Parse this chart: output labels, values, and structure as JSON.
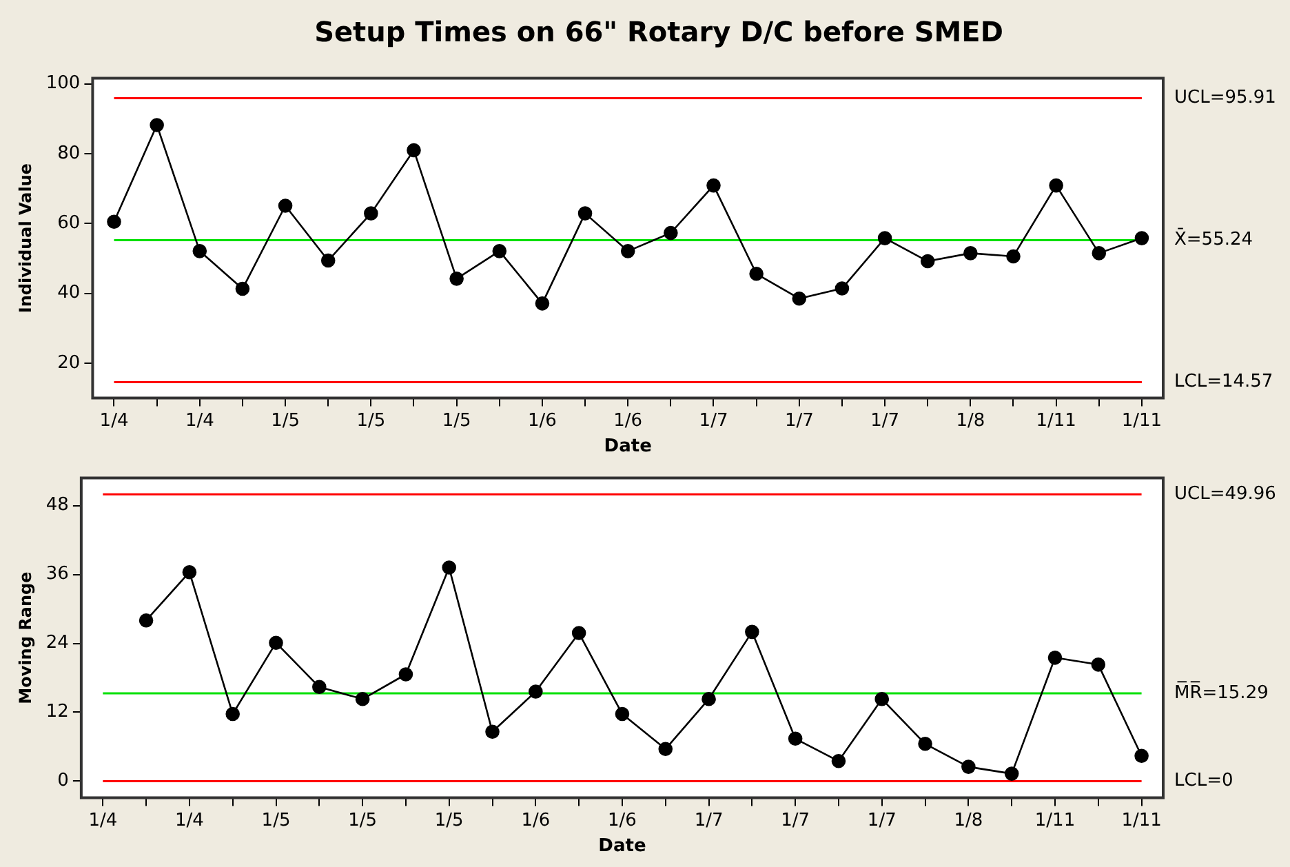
{
  "chart_data": [
    {
      "type": "line",
      "title": "Setup Times on 66\" Rotary D/C before SMED",
      "xlabel": "Date",
      "ylabel": "Individual Value",
      "categories": [
        "1/4",
        null,
        "1/4",
        null,
        "1/5",
        null,
        "1/5",
        null,
        "1/5",
        null,
        "1/6",
        null,
        "1/6",
        null,
        "1/7",
        null,
        "1/7",
        null,
        "1/7",
        null,
        "1/8",
        null,
        "1/11",
        null,
        "1/11"
      ],
      "series": [
        {
          "color": "#000000",
          "values": [
            60.5,
            88.2,
            52.1,
            41.3,
            65.1,
            49.4,
            62.9,
            81,
            44.2,
            52.1,
            37.1,
            62.9,
            52.1,
            57.3,
            70.9,
            45.6,
            38.5,
            41.4,
            55.8,
            49.2,
            51.5,
            50.6,
            70.9,
            51.5,
            55.8
          ]
        }
      ],
      "ylim": [
        10,
        101.6
      ],
      "yticks": [
        20,
        40,
        60,
        80,
        100
      ],
      "grid": false,
      "legend": false,
      "marker": "circle",
      "line_style": "solid",
      "ref_lines": [
        {
          "axis": "y",
          "value": 95.91,
          "label": "UCL=95.91",
          "color": "#ff0000"
        },
        {
          "axis": "y",
          "value": 55.24,
          "label": "X̄=55.24",
          "color": "#00e000"
        },
        {
          "axis": "y",
          "value": 14.57,
          "label": "LCL=14.57",
          "color": "#ff0000"
        }
      ]
    },
    {
      "type": "line",
      "xlabel": "Date",
      "ylabel": "Moving Range",
      "categories": [
        "1/4",
        null,
        "1/4",
        null,
        "1/5",
        null,
        "1/5",
        null,
        "1/5",
        null,
        "1/6",
        null,
        "1/6",
        null,
        "1/7",
        null,
        "1/7",
        null,
        "1/7",
        null,
        "1/8",
        null,
        "1/11",
        null,
        "1/11"
      ],
      "series": [
        {
          "color": "#000000",
          "values": [
            null,
            28.0,
            36.4,
            11.7,
            24.1,
            16.4,
            14.3,
            18.6,
            37.2,
            8.6,
            15.6,
            25.8,
            11.7,
            5.6,
            14.3,
            26.0,
            7.4,
            3.5,
            14.3,
            6.5,
            2.5,
            1.3,
            21.5,
            20.3,
            4.4
          ]
        }
      ],
      "ylim": [
        -2.9,
        52.8
      ],
      "yticks": [
        0,
        12,
        24,
        36,
        48
      ],
      "grid": false,
      "legend": false,
      "marker": "circle",
      "line_style": "solid",
      "ref_lines": [
        {
          "axis": "y",
          "value": 49.96,
          "label": "UCL=49.96",
          "color": "#ff0000"
        },
        {
          "axis": "y",
          "value": 15.29,
          "label": "M̅R̅=15.29",
          "color": "#00e000"
        },
        {
          "axis": "y",
          "value": 0,
          "label": "LCL=0",
          "color": "#ff0000"
        }
      ]
    }
  ]
}
